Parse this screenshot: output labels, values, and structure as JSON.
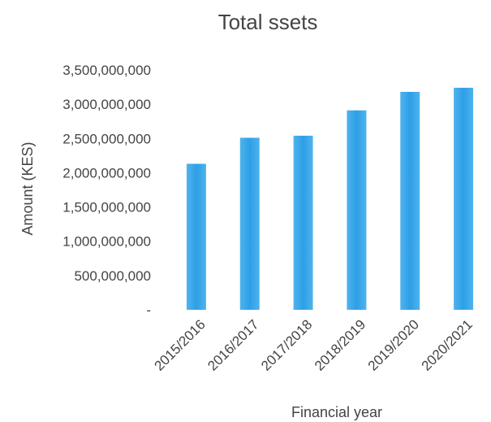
{
  "chart_data": {
    "type": "bar",
    "title": "Total ssets",
    "xlabel": "Financial year",
    "ylabel": "Amount (KES)",
    "categories": [
      "2015/2016",
      "2016/2017",
      "2017/2018",
      "2018/2019",
      "2019/2020",
      "2020/2021"
    ],
    "values": [
      2130000000,
      2510000000,
      2540000000,
      2910000000,
      3180000000,
      3240000000
    ],
    "ylim": [
      0,
      3500000000
    ],
    "yticks": [
      {
        "value": 0,
        "label": "-"
      },
      {
        "value": 500000000,
        "label": "500,000,000"
      },
      {
        "value": 1000000000,
        "label": "1,000,000,000"
      },
      {
        "value": 1500000000,
        "label": "1,500,000,000"
      },
      {
        "value": 2000000000,
        "label": "2,000,000,000"
      },
      {
        "value": 2500000000,
        "label": "2,500,000,000"
      },
      {
        "value": 3000000000,
        "label": "3,000,000,000"
      },
      {
        "value": 3500000000,
        "label": "3,500,000,000"
      }
    ],
    "grid": false,
    "legend": "none",
    "bar_color": "#2e9fe6"
  }
}
